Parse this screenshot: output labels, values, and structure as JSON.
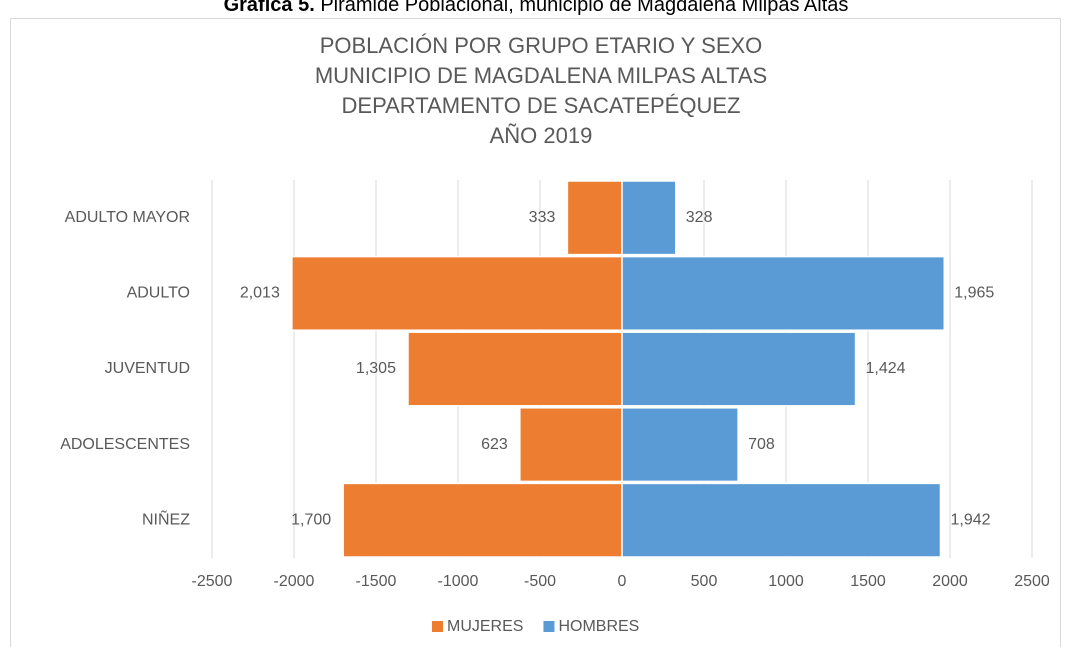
{
  "caption": {
    "label": "Gráfica 5.",
    "text": "Pirámide Poblacional, municipio de Magdalena Milpas Altas"
  },
  "chart_data": {
    "type": "bar",
    "orientation": "horizontal",
    "stacked": true,
    "title": [
      "POBLACIÓN POR GRUPO ETARIO Y SEXO",
      "MUNICIPIO DE MAGDALENA MILPAS ALTAS",
      "DEPARTAMENTO  DE SACATEPÉQUEZ",
      "AÑO 2019"
    ],
    "categories": [
      "ADULTO MAYOR",
      "ADULTO",
      "JUVENTUD",
      "ADOLESCENTES",
      "NIÑEZ"
    ],
    "series": [
      {
        "name": "MUJERES",
        "color": "#ed7d31",
        "values": [
          -333,
          -2013,
          -1305,
          -623,
          -1700
        ],
        "value_labels": [
          "333",
          "2,013",
          "1,305",
          "623",
          "1,700"
        ]
      },
      {
        "name": "HOMBRES",
        "color": "#5b9bd5",
        "values": [
          328,
          1965,
          1424,
          708,
          1942
        ],
        "value_labels": [
          "328",
          "1,965",
          "1,424",
          "708",
          "1,942"
        ]
      }
    ],
    "xlim": [
      -2500,
      2500
    ],
    "xticks": [
      -2500,
      -2000,
      -1500,
      -1000,
      -500,
      0,
      500,
      1000,
      1500,
      2000,
      2500
    ],
    "grid": true,
    "legend": "bottom"
  }
}
